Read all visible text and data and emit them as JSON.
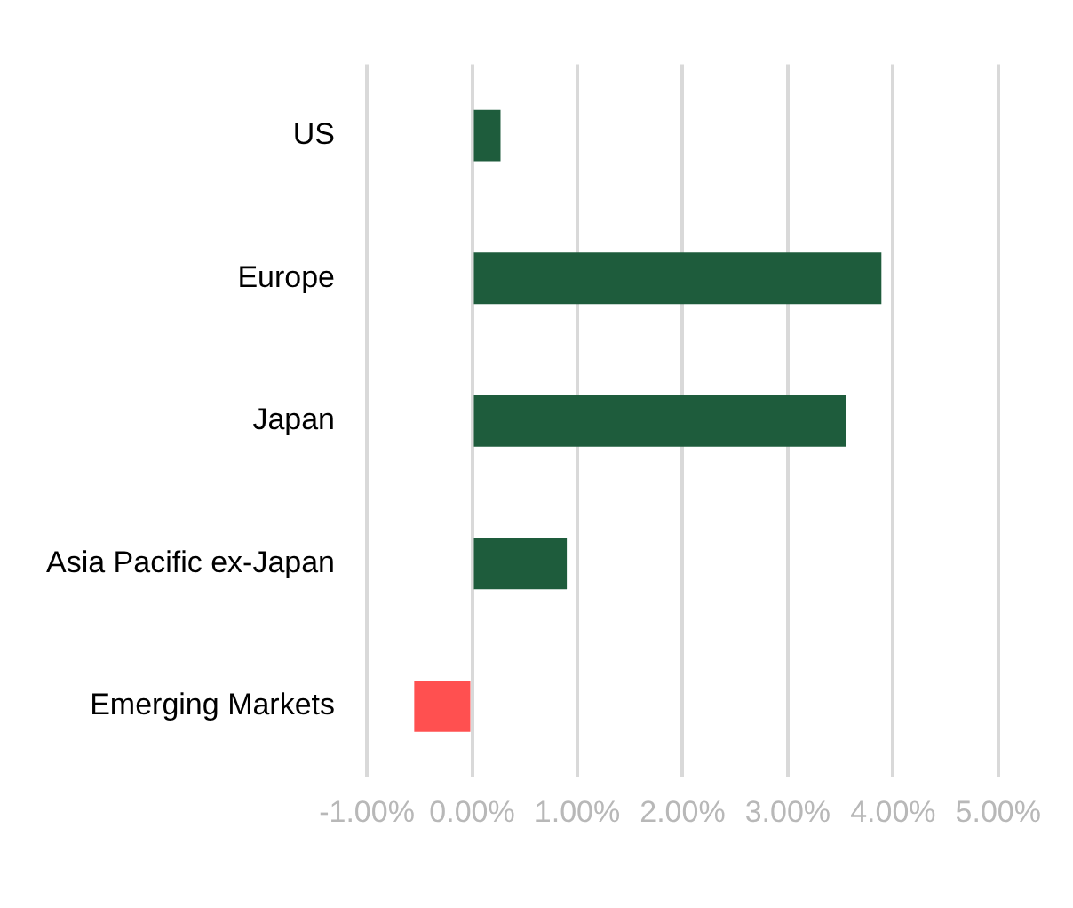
{
  "chart_data": {
    "type": "bar",
    "orientation": "horizontal",
    "categories": [
      "US",
      "Europe",
      "Japan",
      "Asia Pacific ex-Japan",
      "Emerging Markets"
    ],
    "values": [
      0.27,
      3.89,
      3.55,
      0.9,
      -0.55
    ],
    "colors": [
      "#1e5c3c",
      "#1e5c3c",
      "#1e5c3c",
      "#1e5c3c",
      "#ff5050"
    ],
    "xlim": [
      -1,
      5
    ],
    "xticks": [
      {
        "value": -1,
        "label": "-1.00%"
      },
      {
        "value": 0,
        "label": "0.00%"
      },
      {
        "value": 1,
        "label": "1.00%"
      },
      {
        "value": 2,
        "label": "2.00%"
      },
      {
        "value": 3,
        "label": "3.00%"
      },
      {
        "value": 4,
        "label": "4.00%"
      },
      {
        "value": 5,
        "label": "5.00%"
      }
    ],
    "grid": "x",
    "legend": false
  }
}
